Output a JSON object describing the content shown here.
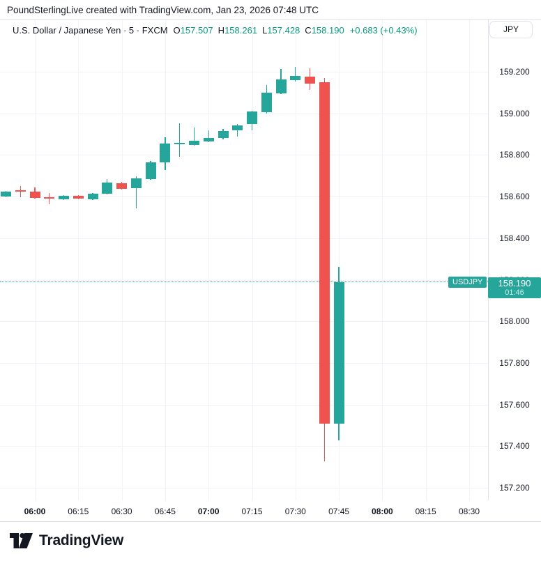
{
  "header": {
    "attribution": "PoundSterlingLive created with TradingView.com, Jan 23, 2026 07:48 UTC"
  },
  "legend": {
    "title": "U.S. Dollar / Japanese Yen · 5 · FXCM",
    "ohlc": [
      {
        "label": "O",
        "value": "157.507"
      },
      {
        "label": "H",
        "value": "158.261"
      },
      {
        "label": "L",
        "value": "157.428"
      },
      {
        "label": "C",
        "value": "158.190"
      }
    ],
    "change": "+0.683 (+0.43%)"
  },
  "price_axis": {
    "unit_button": "JPY",
    "ticks": [
      "159.200",
      "159.000",
      "158.800",
      "158.600",
      "158.400",
      "158.200",
      "158.000",
      "157.800",
      "157.600",
      "157.400",
      "157.200"
    ],
    "last_price_label": {
      "symbol": "USDJPY",
      "price": "158.190",
      "countdown": "01:46"
    }
  },
  "time_axis": {
    "ticks": [
      {
        "label": "06:00",
        "bold": true
      },
      {
        "label": "06:15",
        "bold": false
      },
      {
        "label": "06:30",
        "bold": false
      },
      {
        "label": "06:45",
        "bold": false
      },
      {
        "label": "07:00",
        "bold": true
      },
      {
        "label": "07:15",
        "bold": false
      },
      {
        "label": "07:30",
        "bold": false
      },
      {
        "label": "07:45",
        "bold": false
      },
      {
        "label": "08:00",
        "bold": true
      },
      {
        "label": "08:15",
        "bold": false
      },
      {
        "label": "08:30",
        "bold": false
      }
    ]
  },
  "footer": {
    "brand": "TradingView"
  },
  "colors": {
    "up": "#26a69a",
    "down": "#ef5350",
    "legend_value": "#089981",
    "grid": "#f0f3fa",
    "border": "#e0e3eb",
    "text": "#131722",
    "label_bg": "#26a69a",
    "price_line": "#26a69a"
  },
  "chart_data": {
    "type": "candlestick",
    "title": "U.S. Dollar / Japanese Yen",
    "exchange": "FXCM",
    "interval_minutes": 5,
    "unit": "JPY",
    "last_price": 158.19,
    "countdown": "01:46",
    "y_ticks": [
      159.2,
      159.0,
      158.8,
      158.6,
      158.4,
      158.2,
      158.0,
      157.8,
      157.6,
      157.4,
      157.2
    ],
    "x_tick_times": [
      "06:00",
      "06:15",
      "06:30",
      "06:45",
      "07:00",
      "07:15",
      "07:30",
      "07:45",
      "08:00",
      "08:15",
      "08:30"
    ],
    "candles": [
      {
        "t": "05:50",
        "o": 158.6,
        "h": 158.628,
        "l": 158.596,
        "c": 158.624
      },
      {
        "t": "05:55",
        "o": 158.63,
        "h": 158.65,
        "l": 158.597,
        "c": 158.625
      },
      {
        "t": "06:00",
        "o": 158.624,
        "h": 158.644,
        "l": 158.59,
        "c": 158.593
      },
      {
        "t": "06:05",
        "o": 158.597,
        "h": 158.617,
        "l": 158.563,
        "c": 158.592
      },
      {
        "t": "06:10",
        "o": 158.588,
        "h": 158.608,
        "l": 158.584,
        "c": 158.604
      },
      {
        "t": "06:15",
        "o": 158.604,
        "h": 158.608,
        "l": 158.586,
        "c": 158.59
      },
      {
        "t": "06:20",
        "o": 158.588,
        "h": 158.618,
        "l": 158.584,
        "c": 158.614
      },
      {
        "t": "06:25",
        "o": 158.614,
        "h": 158.684,
        "l": 158.61,
        "c": 158.667
      },
      {
        "t": "06:30",
        "o": 158.664,
        "h": 158.67,
        "l": 158.634,
        "c": 158.638
      },
      {
        "t": "06:35",
        "o": 158.641,
        "h": 158.697,
        "l": 158.543,
        "c": 158.687
      },
      {
        "t": "06:40",
        "o": 158.684,
        "h": 158.77,
        "l": 158.68,
        "c": 158.765
      },
      {
        "t": "06:45",
        "o": 158.764,
        "h": 158.885,
        "l": 158.727,
        "c": 158.855
      },
      {
        "t": "06:50",
        "o": 158.853,
        "h": 158.952,
        "l": 158.791,
        "c": 158.857
      },
      {
        "t": "06:55",
        "o": 158.848,
        "h": 158.932,
        "l": 158.845,
        "c": 158.868
      },
      {
        "t": "07:00",
        "o": 158.865,
        "h": 158.919,
        "l": 158.862,
        "c": 158.882
      },
      {
        "t": "07:05",
        "o": 158.882,
        "h": 158.925,
        "l": 158.875,
        "c": 158.915
      },
      {
        "t": "07:10",
        "o": 158.919,
        "h": 158.948,
        "l": 158.888,
        "c": 158.942
      },
      {
        "t": "07:15",
        "o": 158.949,
        "h": 159.012,
        "l": 158.919,
        "c": 159.009
      },
      {
        "t": "07:20",
        "o": 159.005,
        "h": 159.136,
        "l": 159.0,
        "c": 159.099
      },
      {
        "t": "07:25",
        "o": 159.096,
        "h": 159.213,
        "l": 159.092,
        "c": 159.163
      },
      {
        "t": "07:30",
        "o": 159.16,
        "h": 159.223,
        "l": 159.153,
        "c": 159.18
      },
      {
        "t": "07:35",
        "o": 159.177,
        "h": 159.217,
        "l": 159.113,
        "c": 159.143
      },
      {
        "t": "07:40",
        "o": 159.15,
        "h": 159.17,
        "l": 157.327,
        "c": 157.507
      },
      {
        "t": "07:45",
        "o": 157.507,
        "h": 158.261,
        "l": 157.428,
        "c": 158.19
      }
    ]
  }
}
